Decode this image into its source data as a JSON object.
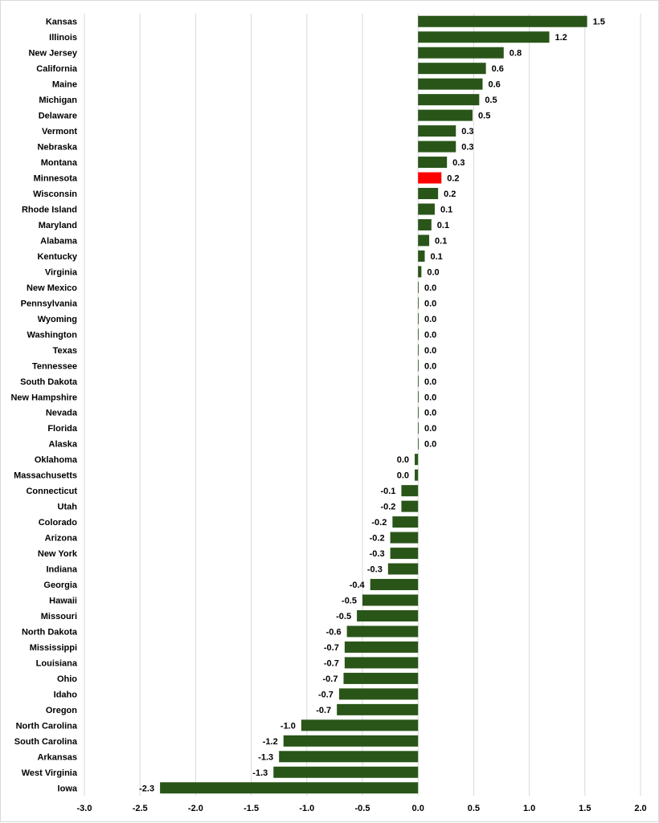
{
  "chart_data": {
    "type": "bar",
    "orientation": "horizontal",
    "title": "",
    "xlabel": "",
    "ylabel": "",
    "xlim": [
      -3.0,
      2.0
    ],
    "x_ticks": [
      "-3.0",
      "-2.5",
      "-2.0",
      "-1.5",
      "-1.0",
      "-0.5",
      "0.0",
      "0.5",
      "1.0",
      "1.5",
      "2.0"
    ],
    "grid": true,
    "bar_color": "#2a5519",
    "highlight_color": "#ff0000",
    "highlight_category": "Minnesota",
    "categories": [
      "Kansas",
      "Illinois",
      "New Jersey",
      "California",
      "Maine",
      "Michigan",
      "Delaware",
      "Vermont",
      "Nebraska",
      "Montana",
      "Minnesota",
      "Wisconsin",
      "Rhode Island",
      "Maryland",
      "Alabama",
      "Kentucky",
      "Virginia",
      "New Mexico",
      "Pennsylvania",
      "Wyoming",
      "Washington",
      "Texas",
      "Tennessee",
      "South Dakota",
      "New Hampshire",
      "Nevada",
      "Florida",
      "Alaska",
      "Oklahoma",
      "Massachusetts",
      "Connecticut",
      "Utah",
      "Colorado",
      "Arizona",
      "New York",
      "Indiana",
      "Georgia",
      "Hawaii",
      "Missouri",
      "North Dakota",
      "Mississippi",
      "Louisiana",
      "Ohio",
      "Idaho",
      "Oregon",
      "North Carolina",
      "South Carolina",
      "Arkansas",
      "West Virginia",
      "Iowa"
    ],
    "values": [
      1.52,
      1.18,
      0.77,
      0.61,
      0.58,
      0.55,
      0.49,
      0.34,
      0.34,
      0.26,
      0.21,
      0.18,
      0.15,
      0.12,
      0.1,
      0.06,
      0.03,
      0.005,
      0,
      0,
      0,
      0,
      0,
      0,
      0,
      0,
      0,
      0,
      -0.03,
      -0.03,
      -0.15,
      -0.15,
      -0.23,
      -0.25,
      -0.25,
      -0.27,
      -0.43,
      -0.5,
      -0.55,
      -0.64,
      -0.66,
      -0.66,
      -0.67,
      -0.71,
      -0.73,
      -1.05,
      -1.21,
      -1.25,
      -1.3,
      -2.32
    ],
    "labels": [
      "1.5",
      "1.2",
      "0.8",
      "0.6",
      "0.6",
      "0.5",
      "0.5",
      "0.3",
      "0.3",
      "0.3",
      "0.2",
      "0.2",
      "0.1",
      "0.1",
      "0.1",
      "0.1",
      "0.0",
      "0.0",
      "0.0",
      "0.0",
      "0.0",
      "0.0",
      "0.0",
      "0.0",
      "0.0",
      "0.0",
      "0.0",
      "0.0",
      "0.0",
      "0.0",
      "-0.1",
      "-0.2",
      "-0.2",
      "-0.2",
      "-0.3",
      "-0.3",
      "-0.4",
      "-0.5",
      "-0.5",
      "-0.6",
      "-0.7",
      "-0.7",
      "-0.7",
      "-0.7",
      "-0.7",
      "-1.0",
      "-1.2",
      "-1.3",
      "-1.3",
      "-2.3"
    ]
  }
}
